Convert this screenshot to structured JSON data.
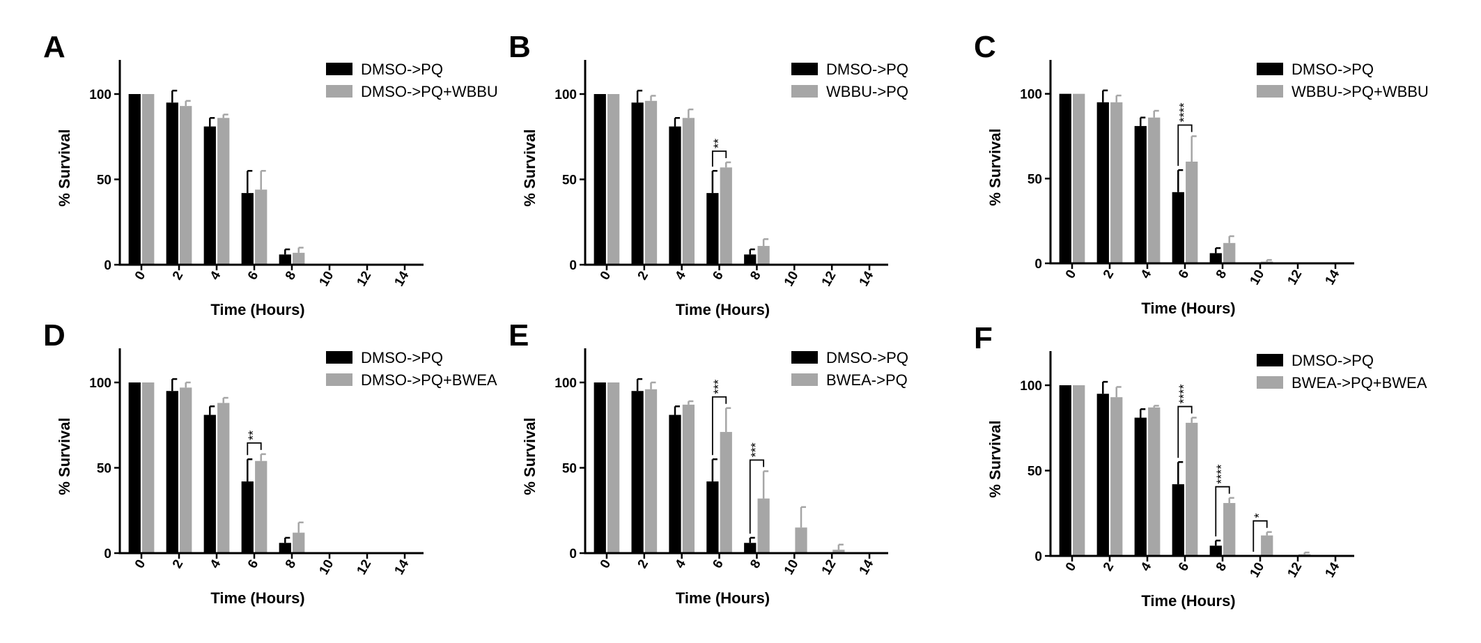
{
  "figure": {
    "series_colors": {
      "control": "#000000",
      "treatment": "#a6a6a6"
    }
  },
  "chart_data": [
    {
      "panel": "A",
      "type": "bar",
      "xlabel": "Time (Hours)",
      "ylabel": "% Survival",
      "ylim": [
        0,
        120
      ],
      "yticks": [
        0,
        50,
        100
      ],
      "categories": [
        "0",
        "2",
        "4",
        "6",
        "8",
        "10",
        "12",
        "14"
      ],
      "series": [
        {
          "name": "DMSO->PQ",
          "color": "#000000",
          "values": [
            100,
            95,
            81,
            42,
            6,
            0,
            0,
            0
          ],
          "errors": [
            0,
            7,
            5,
            13,
            3,
            0,
            0,
            0
          ]
        },
        {
          "name": "DMSO->PQ+WBBU",
          "color": "#a6a6a6",
          "values": [
            100,
            93,
            86,
            44,
            7,
            0,
            0,
            0
          ],
          "errors": [
            0,
            3,
            2,
            11,
            3,
            0,
            0,
            0
          ]
        }
      ],
      "annotations": [],
      "legend_position": "top-right",
      "grid": false
    },
    {
      "panel": "B",
      "type": "bar",
      "xlabel": "Time (Hours)",
      "ylabel": "% Survival",
      "ylim": [
        0,
        120
      ],
      "yticks": [
        0,
        50,
        100
      ],
      "categories": [
        "0",
        "2",
        "4",
        "6",
        "8",
        "10",
        "12",
        "14"
      ],
      "series": [
        {
          "name": "DMSO->PQ",
          "color": "#000000",
          "values": [
            100,
            95,
            81,
            42,
            6,
            0,
            0,
            0
          ],
          "errors": [
            0,
            7,
            5,
            13,
            3,
            0,
            0,
            0
          ]
        },
        {
          "name": "WBBU->PQ",
          "color": "#a6a6a6",
          "values": [
            100,
            96,
            86,
            57,
            11,
            0,
            0,
            0
          ],
          "errors": [
            0,
            3,
            5,
            3,
            4,
            0,
            0,
            0
          ]
        }
      ],
      "annotations": [
        {
          "category": "6",
          "label": "**"
        }
      ],
      "legend_position": "top-right",
      "grid": false
    },
    {
      "panel": "C",
      "type": "bar",
      "xlabel": "Time (Hours)",
      "ylabel": "% Survival",
      "ylim": [
        0,
        120
      ],
      "yticks": [
        0,
        50,
        100
      ],
      "categories": [
        "0",
        "2",
        "4",
        "6",
        "8",
        "10",
        "12",
        "14"
      ],
      "series": [
        {
          "name": "DMSO->PQ",
          "color": "#000000",
          "values": [
            100,
            95,
            81,
            42,
            6,
            0,
            0,
            0
          ],
          "errors": [
            0,
            7,
            5,
            13,
            3,
            0,
            0,
            0
          ]
        },
        {
          "name": "WBBU->PQ+WBBU",
          "color": "#a6a6a6",
          "values": [
            100,
            95,
            86,
            60,
            12,
            1,
            0,
            0
          ],
          "errors": [
            0,
            4,
            4,
            15,
            4,
            1,
            0,
            0
          ]
        }
      ],
      "annotations": [
        {
          "category": "6",
          "label": "****"
        }
      ],
      "legend_position": "top-right",
      "grid": false
    },
    {
      "panel": "D",
      "type": "bar",
      "xlabel": "Time (Hours)",
      "ylabel": "% Survival",
      "ylim": [
        0,
        120
      ],
      "yticks": [
        0,
        50,
        100
      ],
      "categories": [
        "0",
        "2",
        "4",
        "6",
        "8",
        "10",
        "12",
        "14"
      ],
      "series": [
        {
          "name": "DMSO->PQ",
          "color": "#000000",
          "values": [
            100,
            95,
            81,
            42,
            6,
            0,
            0,
            0
          ],
          "errors": [
            0,
            7,
            5,
            13,
            3,
            0,
            0,
            0
          ]
        },
        {
          "name": "DMSO->PQ+BWEA",
          "color": "#a6a6a6",
          "values": [
            100,
            97,
            88,
            54,
            12,
            0,
            0,
            0
          ],
          "errors": [
            0,
            3,
            3,
            4,
            6,
            0,
            0,
            0
          ]
        }
      ],
      "annotations": [
        {
          "category": "6",
          "label": "**"
        }
      ],
      "legend_position": "top-right",
      "grid": false
    },
    {
      "panel": "E",
      "type": "bar",
      "xlabel": "Time (Hours)",
      "ylabel": "% Survival",
      "ylim": [
        0,
        120
      ],
      "yticks": [
        0,
        50,
        100
      ],
      "categories": [
        "0",
        "2",
        "4",
        "6",
        "8",
        "10",
        "12",
        "14"
      ],
      "series": [
        {
          "name": "DMSO->PQ",
          "color": "#000000",
          "values": [
            100,
            95,
            81,
            42,
            6,
            0,
            0,
            0
          ],
          "errors": [
            0,
            7,
            5,
            13,
            3,
            0,
            0,
            0
          ]
        },
        {
          "name": "BWEA->PQ",
          "color": "#a6a6a6",
          "values": [
            100,
            96,
            87,
            71,
            32,
            15,
            2,
            0
          ],
          "errors": [
            0,
            4,
            2,
            14,
            16,
            12,
            3,
            0
          ]
        }
      ],
      "annotations": [
        {
          "category": "6",
          "label": "***"
        },
        {
          "category": "8",
          "label": "***"
        }
      ],
      "legend_position": "top-right",
      "grid": false
    },
    {
      "panel": "F",
      "type": "bar",
      "xlabel": "Time (Hours)",
      "ylabel": "% Survival",
      "ylim": [
        0,
        120
      ],
      "yticks": [
        0,
        50,
        100
      ],
      "categories": [
        "0",
        "2",
        "4",
        "6",
        "8",
        "10",
        "12",
        "14"
      ],
      "series": [
        {
          "name": "DMSO->PQ",
          "color": "#000000",
          "values": [
            100,
            95,
            81,
            42,
            6,
            0,
            0,
            0
          ],
          "errors": [
            0,
            7,
            5,
            13,
            3,
            0,
            0,
            0
          ]
        },
        {
          "name": "BWEA->PQ+BWEA",
          "color": "#a6a6a6",
          "values": [
            100,
            93,
            87,
            78,
            31,
            12,
            1,
            0
          ],
          "errors": [
            0,
            6,
            1,
            3,
            3,
            2,
            1,
            0
          ]
        }
      ],
      "annotations": [
        {
          "category": "6",
          "label": "****"
        },
        {
          "category": "8",
          "label": "****"
        },
        {
          "category": "10",
          "label": "*"
        }
      ],
      "legend_position": "top-right",
      "grid": false
    }
  ]
}
